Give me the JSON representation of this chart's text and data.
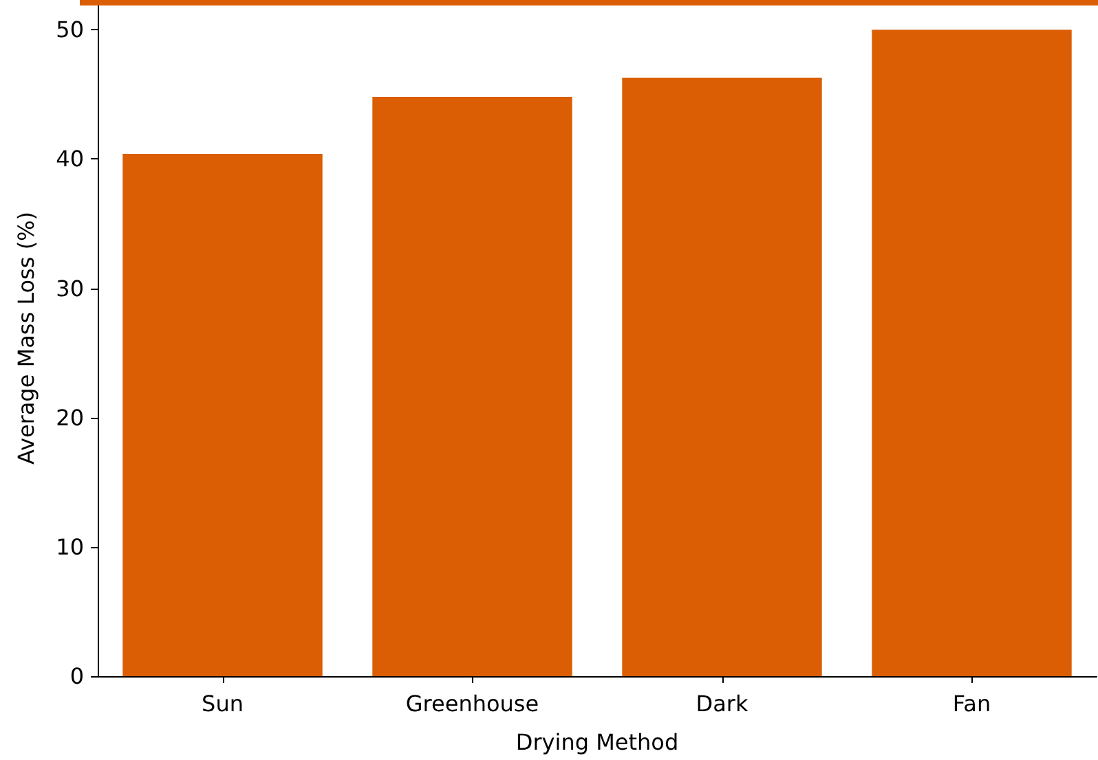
{
  "chart_data": {
    "type": "bar",
    "xlabel": "Drying Method",
    "ylabel": "Average Mass Loss (%)",
    "categories": [
      "Sun",
      "Greenhouse",
      "Dark",
      "Fan"
    ],
    "values": [
      40.4,
      44.8,
      46.3,
      50.0
    ],
    "color": "#db5e04",
    "ylim": [
      0,
      52.3
    ],
    "yticks": [
      0,
      10,
      20,
      30,
      40,
      50
    ],
    "grid": false
  }
}
